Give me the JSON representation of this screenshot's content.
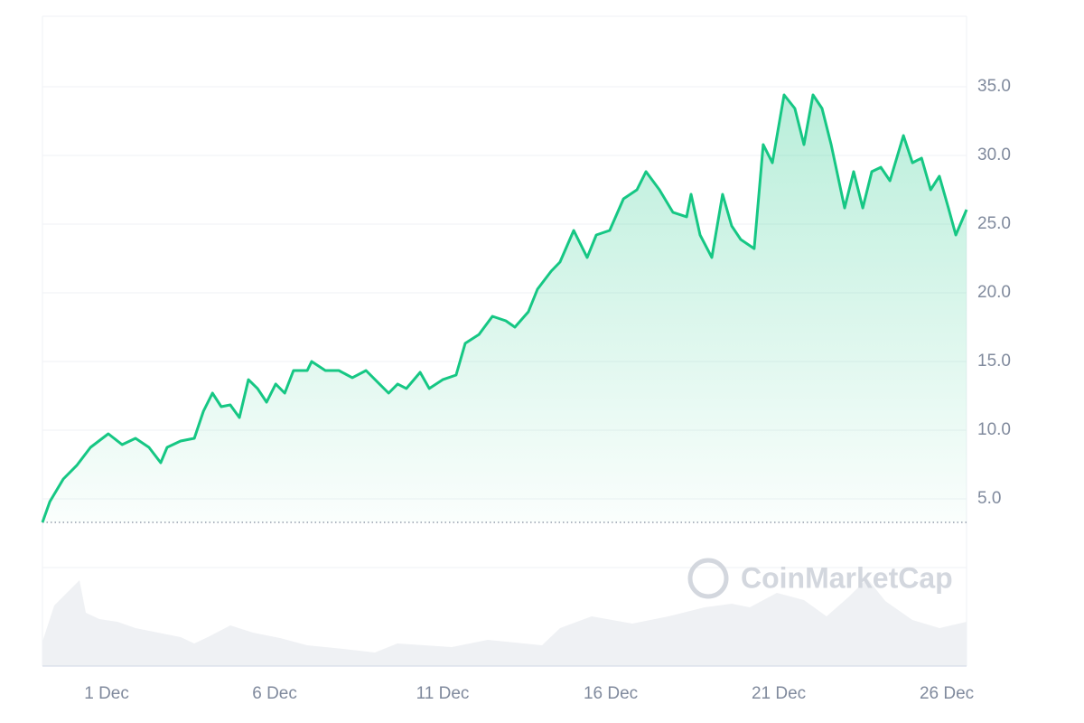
{
  "chart_data": {
    "type": "line",
    "watermark": "CoinMarketCap",
    "x": [
      -0.91,
      -0.69,
      -0.29,
      0.11,
      0.52,
      1.05,
      1.46,
      1.86,
      2.26,
      2.61,
      2.8,
      3.2,
      3.61,
      3.88,
      4.15,
      4.41,
      4.68,
      4.95,
      5.22,
      5.49,
      5.76,
      6.03,
      6.3,
      6.56,
      6.97,
      7.1,
      7.51,
      7.91,
      8.31,
      8.72,
      9.12,
      9.39,
      9.66,
      9.92,
      10.33,
      10.6,
      11.0,
      11.4,
      11.67,
      12.08,
      12.48,
      12.88,
      13.15,
      13.55,
      13.82,
      14.23,
      14.49,
      14.9,
      15.3,
      15.57,
      15.97,
      16.38,
      16.78,
      17.05,
      17.45,
      17.85,
      18.26,
      18.39,
      18.66,
      19.01,
      19.33,
      19.6,
      19.87,
      20.27,
      20.54,
      20.81,
      21.16,
      21.48,
      21.75,
      22.02,
      22.29,
      22.56,
      22.96,
      23.23,
      23.5,
      23.77,
      24.04,
      24.31,
      24.71,
      24.98,
      25.25,
      25.52,
      25.78,
      26.05,
      26.27,
      26.59
    ],
    "series": [
      {
        "color": "#16c784",
        "values": [
          3.29,
          4.8,
          6.45,
          7.43,
          8.75,
          9.74,
          8.95,
          9.41,
          8.75,
          7.63,
          8.75,
          9.21,
          9.41,
          11.38,
          12.7,
          11.71,
          11.84,
          10.92,
          13.68,
          13.03,
          12.04,
          13.36,
          12.7,
          14.34,
          14.34,
          15.0,
          14.34,
          14.34,
          13.82,
          14.34,
          13.36,
          12.7,
          13.36,
          13.03,
          14.21,
          13.03,
          13.68,
          14.01,
          16.32,
          16.97,
          18.29,
          17.96,
          17.5,
          18.62,
          20.26,
          21.58,
          22.24,
          24.54,
          22.57,
          24.21,
          24.54,
          26.84,
          27.5,
          28.82,
          27.5,
          25.86,
          25.53,
          27.17,
          24.21,
          22.57,
          27.17,
          24.87,
          23.88,
          23.22,
          30.79,
          29.47,
          34.41,
          33.42,
          30.79,
          34.41,
          33.42,
          30.79,
          26.18,
          28.82,
          26.18,
          28.82,
          29.14,
          28.16,
          31.45,
          29.47,
          29.8,
          27.5,
          28.49,
          26.18,
          24.21,
          26.05
        ]
      }
    ],
    "reference_line": 3.29,
    "xlim": [
      -0.91,
      26.59
    ],
    "xticks": [
      {
        "value": 1,
        "label": "1 Dec"
      },
      {
        "value": 6,
        "label": "6 Dec"
      },
      {
        "value": 11,
        "label": "11 Dec"
      },
      {
        "value": 16,
        "label": "16 Dec"
      },
      {
        "value": 21,
        "label": "21 Dec"
      },
      {
        "value": 26,
        "label": "26 Dec"
      }
    ],
    "ylim": [
      0,
      40
    ],
    "yticks": [
      {
        "value": 5,
        "label": "5.0"
      },
      {
        "value": 10,
        "label": "10.0"
      },
      {
        "value": 15,
        "label": "15.0"
      },
      {
        "value": 20,
        "label": "20.0"
      },
      {
        "value": 25,
        "label": "25.0"
      },
      {
        "value": 30,
        "label": "30.0"
      },
      {
        "value": 35,
        "label": "35.0"
      }
    ],
    "grid": true
  }
}
